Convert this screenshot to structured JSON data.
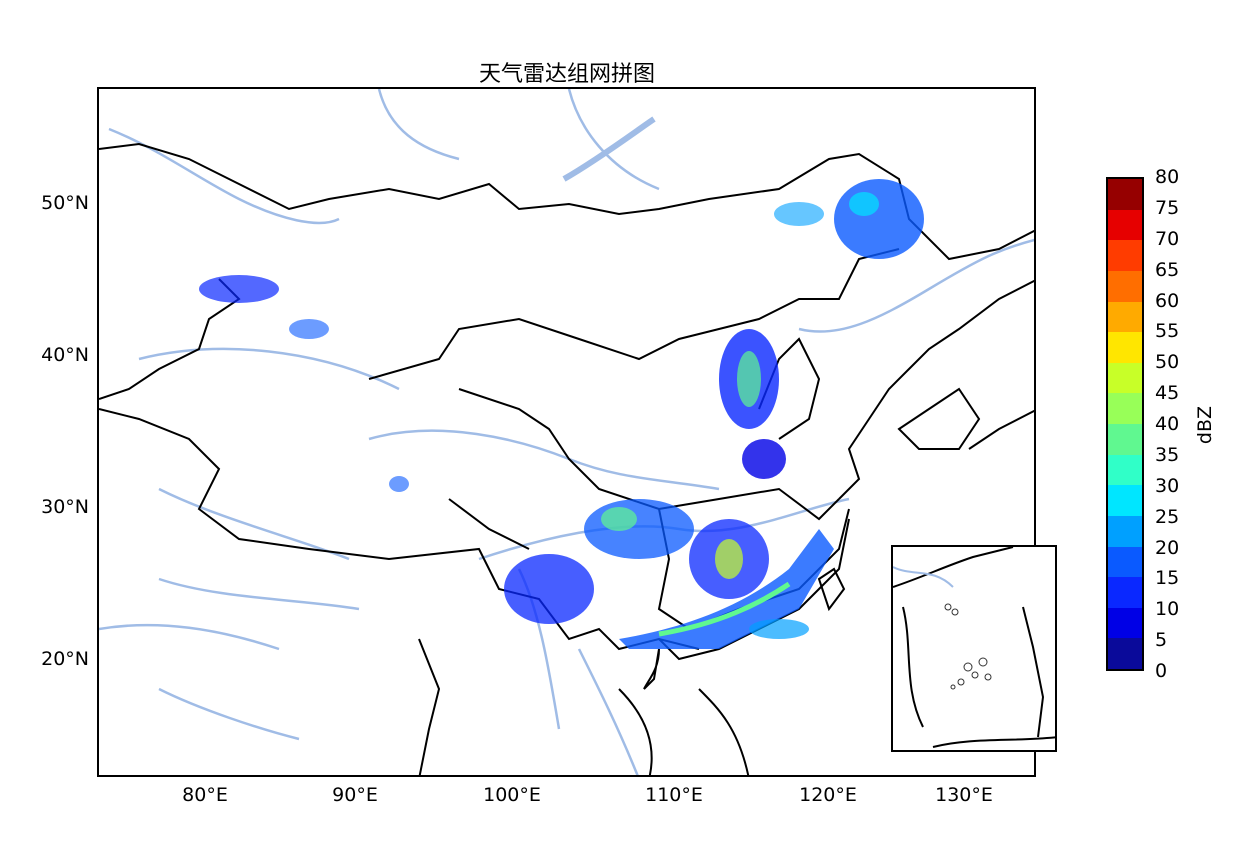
{
  "title": "天气雷达组网拼图",
  "map": {
    "x_ticks": [
      "80°E",
      "90°E",
      "100°E",
      "110°E",
      "120°E",
      "130°E"
    ],
    "y_ticks": [
      "50°N",
      "40°N",
      "30°N",
      "20°N"
    ],
    "colors": {
      "border": "#000000",
      "river": "#a0bce6"
    }
  },
  "colorbar": {
    "label": "dBZ",
    "ticks": [
      "0",
      "5",
      "10",
      "15",
      "20",
      "25",
      "30",
      "35",
      "40",
      "45",
      "50",
      "55",
      "60",
      "65",
      "70",
      "75",
      "80"
    ],
    "colors": [
      "#0a0a9a",
      "#0000e6",
      "#0a28ff",
      "#0a5aff",
      "#00a0ff",
      "#00e6ff",
      "#30ffc8",
      "#60f890",
      "#98ff58",
      "#c8ff28",
      "#ffe600",
      "#ffaa00",
      "#ff6e00",
      "#ff3c00",
      "#e60000",
      "#960000"
    ]
  }
}
